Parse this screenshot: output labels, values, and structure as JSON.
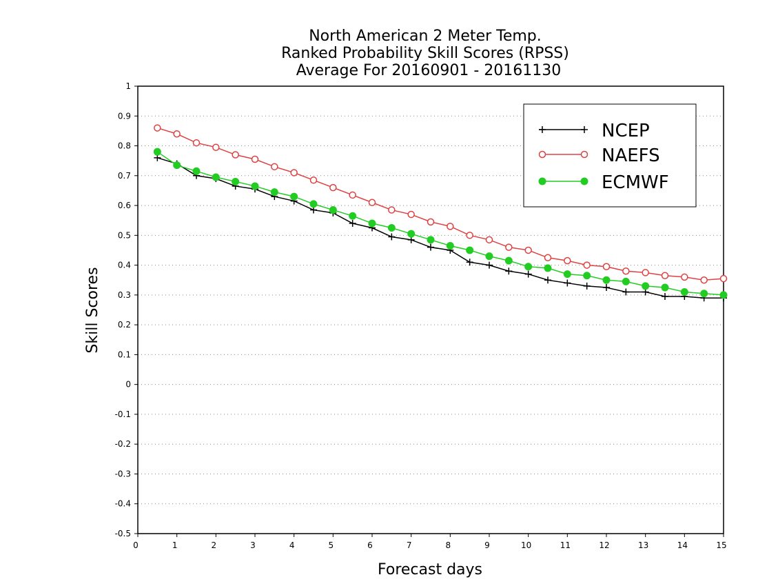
{
  "chart_data": {
    "type": "line",
    "title": [
      "North American 2 Meter Temp.",
      "Ranked Probability Skill Scores (RPSS)",
      "Average For 20160901 - 20161130"
    ],
    "xlabel": "Forecast days",
    "ylabel": "Skill Scores",
    "xlim": [
      0,
      15
    ],
    "ylim": [
      -0.5,
      1
    ],
    "xticks": [
      0,
      1,
      2,
      3,
      4,
      5,
      6,
      7,
      8,
      9,
      10,
      11,
      12,
      13,
      14,
      15
    ],
    "yticks": [
      -0.5,
      -0.4,
      -0.3,
      -0.2,
      -0.1,
      0,
      0.1,
      0.2,
      0.3,
      0.4,
      0.5,
      0.6,
      0.7,
      0.8,
      0.9,
      1
    ],
    "grid": "horizontal dotted",
    "legend_position": "top-right",
    "x": [
      0.5,
      1,
      1.5,
      2,
      2.5,
      3,
      3.5,
      4,
      4.5,
      5,
      5.5,
      6,
      6.5,
      7,
      7.5,
      8,
      8.5,
      9,
      9.5,
      10,
      10.5,
      11,
      11.5,
      12,
      12.5,
      13,
      13.5,
      14,
      14.5,
      15
    ],
    "series": [
      {
        "name": "NCEP",
        "color": "#000000",
        "marker": "plus",
        "values": [
          0.76,
          0.74,
          0.7,
          0.69,
          0.665,
          0.655,
          0.63,
          0.615,
          0.585,
          0.575,
          0.54,
          0.525,
          0.495,
          0.485,
          0.46,
          0.45,
          0.41,
          0.4,
          0.38,
          0.37,
          0.35,
          0.34,
          0.33,
          0.325,
          0.31,
          0.31,
          0.295,
          0.295,
          0.29,
          0.29
        ]
      },
      {
        "name": "NAEFS",
        "color": "#e04040",
        "marker": "open-circle",
        "values": [
          0.86,
          0.84,
          0.81,
          0.795,
          0.77,
          0.755,
          0.73,
          0.71,
          0.685,
          0.66,
          0.635,
          0.61,
          0.585,
          0.57,
          0.545,
          0.53,
          0.5,
          0.485,
          0.46,
          0.45,
          0.425,
          0.415,
          0.4,
          0.395,
          0.38,
          0.375,
          0.365,
          0.36,
          0.35,
          0.355
        ]
      },
      {
        "name": "ECMWF",
        "color": "#22cc22",
        "marker": "filled-circle",
        "values": [
          0.78,
          0.735,
          0.715,
          0.695,
          0.68,
          0.665,
          0.645,
          0.63,
          0.605,
          0.585,
          0.565,
          0.54,
          0.525,
          0.505,
          0.485,
          0.465,
          0.45,
          0.43,
          0.415,
          0.395,
          0.39,
          0.37,
          0.365,
          0.35,
          0.345,
          0.33,
          0.325,
          0.31,
          0.305,
          0.3
        ]
      }
    ]
  }
}
